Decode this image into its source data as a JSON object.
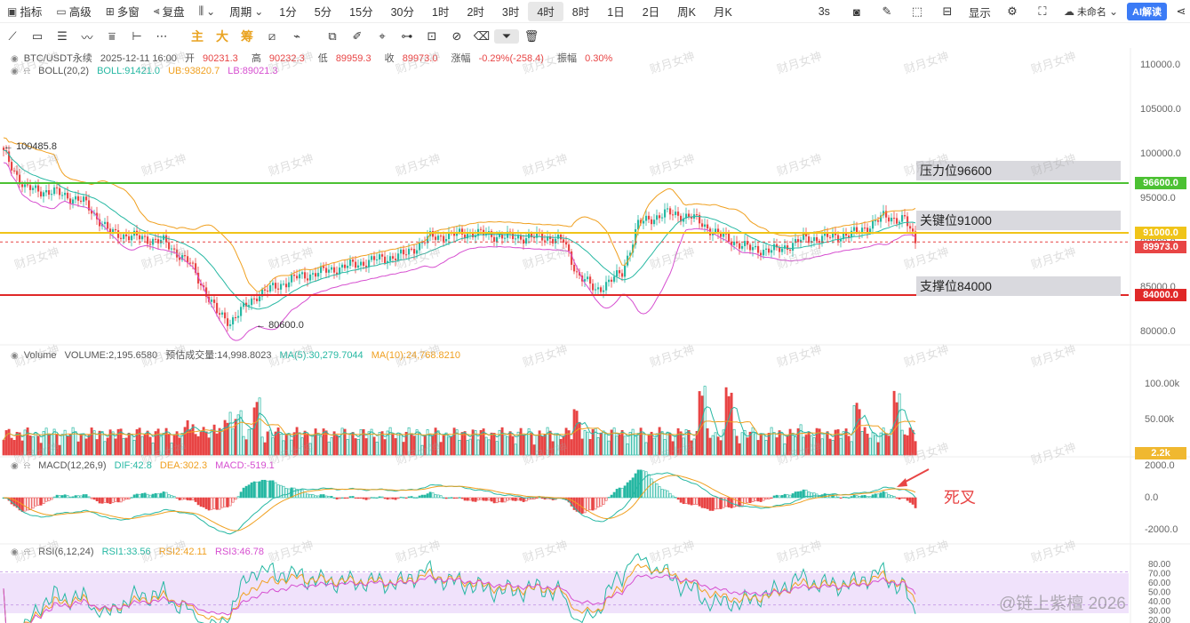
{
  "toolbar": {
    "indicators": "指标",
    "advanced": "高级",
    "multi_window": "多窗",
    "adjust": "复盘",
    "period": "周期",
    "timeframes": [
      "1分",
      "5分",
      "15分",
      "30分",
      "1时",
      "2时",
      "3时",
      "4时",
      "8时",
      "1日",
      "2日",
      "周K",
      "月K"
    ],
    "active_timeframe": "4时",
    "refresh": "3s",
    "display": "显示",
    "unnamed": "未命名",
    "ai": "AI解读"
  },
  "drawbar": {
    "chars": [
      "主",
      "大",
      "筹"
    ]
  },
  "header": {
    "symbol": "BTC/USDT永续",
    "datetime": "2025-12-11 16:00",
    "open_label": "开",
    "open": "90231.3",
    "high_label": "高",
    "high": "90232.3",
    "low_label": "低",
    "low": "89959.3",
    "close_label": "收",
    "close": "89973.0",
    "change_label": "涨幅",
    "change": "-0.29%(-258.4)",
    "amp_label": "振幅",
    "amp": "0.30%"
  },
  "boll": {
    "name": "BOLL(20,2)",
    "mid": "BOLL:91421.0",
    "ub": "UB:93820.7",
    "lb": "LB:89021.3"
  },
  "volume": {
    "name": "Volume",
    "vol": "VOLUME:2,195.6580",
    "est": "预估成交量:14,998.8023",
    "ma5": "MA(5):30,279.7044",
    "ma10": "MA(10):24,768.8210"
  },
  "macd": {
    "name": "MACD(12,26,9)",
    "dif": "DIF:42.8",
    "dea": "DEA:302.3",
    "macd": "MACD:-519.1"
  },
  "rsi": {
    "name": "RSI(6,12,24)",
    "rsi1": "RSI1:33.56",
    "rsi2": "RSI2:42.11",
    "rsi3": "RSI3:46.78"
  },
  "price_axis": [
    "110000.0",
    "105000.0",
    "100000.0",
    "95000.0",
    "90000.0",
    "85000.0",
    "80000.0"
  ],
  "volume_axis": [
    "100.00k",
    "50.00k"
  ],
  "macd_axis": [
    "2000.0",
    "0.0",
    "-2000.0"
  ],
  "rsi_axis": [
    "80.00",
    "70.00",
    "60.00",
    "50.00",
    "40.00",
    "30.00",
    "20.00"
  ],
  "levels": {
    "resistance_label": "压力位96600",
    "resistance_tag": "96600.0",
    "resistance_price": 96600,
    "key_label": "关键位91000",
    "key_tag": "91000.0",
    "key_price": 91000,
    "support_label": "支撑位84000",
    "support_tag": "84000.0",
    "support_price": 84000,
    "last_tag": "89973.0",
    "last_price": 89973,
    "vol_tag": "2.2k"
  },
  "annotations": {
    "high_mark": "100485.8",
    "low_mark": "80600.0",
    "death_cross": "死叉"
  },
  "watermark": "财月女神",
  "footer_watermark": "@链上紫檀 2026",
  "colors": {
    "up": "#27b8a3",
    "down": "#e84545",
    "resistance": "#4cc133",
    "key": "#f0c419",
    "support": "#e02828",
    "boll_mid": "#27b8a3",
    "boll_ub": "#f0a020",
    "boll_lb": "#d64fd0"
  }
}
